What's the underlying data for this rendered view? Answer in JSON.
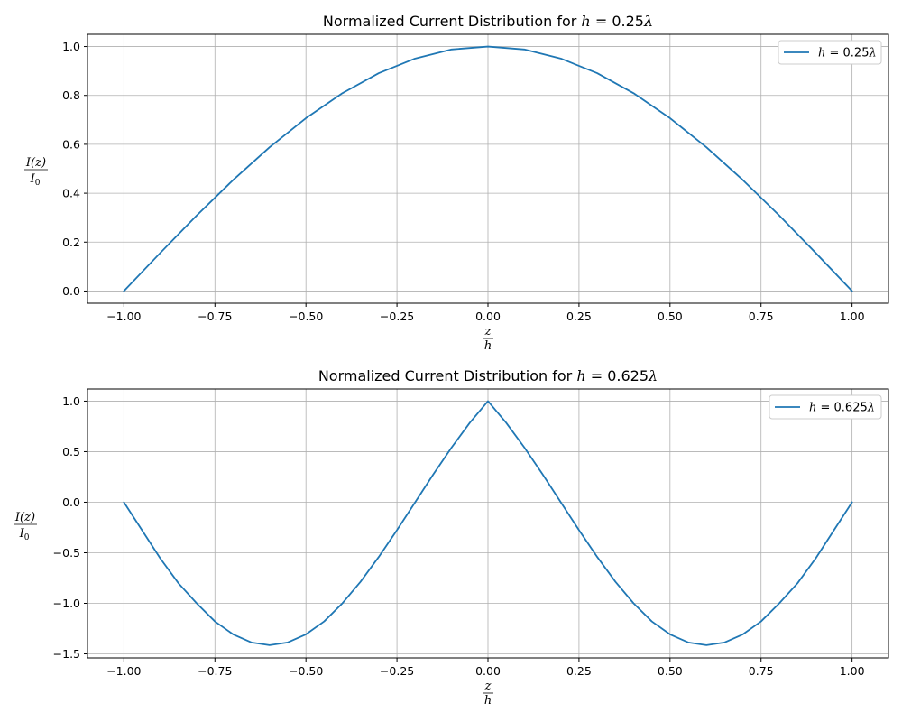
{
  "chart_data": [
    {
      "type": "line",
      "title": "Normalized Current Distribution for h = 0.25λ",
      "title_parts": {
        "prefix": "Normalized Current Distribution for ",
        "h": "h",
        "eq": " = 0.25",
        "lambda": "λ"
      },
      "xlabel": {
        "num": "z",
        "den": "h"
      },
      "ylabel": {
        "num": "I(z)",
        "den_main": "I",
        "den_sub": "0"
      },
      "xlim": [
        -1.1,
        1.1
      ],
      "ylim": [
        -0.05,
        1.05
      ],
      "xticks": [
        -1.0,
        -0.75,
        -0.5,
        -0.25,
        0.0,
        0.25,
        0.5,
        0.75,
        1.0
      ],
      "xtick_labels": [
        "−1.00",
        "−0.75",
        "−0.50",
        "−0.25",
        "0.00",
        "0.25",
        "0.50",
        "0.75",
        "1.00"
      ],
      "yticks": [
        0.0,
        0.2,
        0.4,
        0.6,
        0.8,
        1.0
      ],
      "ytick_labels": [
        "0.0",
        "0.2",
        "0.4",
        "0.6",
        "0.8",
        "1.0"
      ],
      "grid": true,
      "legend_position": "top-right",
      "x": [
        -1.0,
        -0.9,
        -0.8,
        -0.7,
        -0.6,
        -0.5,
        -0.4,
        -0.3,
        -0.2,
        -0.1,
        0.0,
        0.1,
        0.2,
        0.3,
        0.4,
        0.5,
        0.6,
        0.7,
        0.8,
        0.9,
        1.0
      ],
      "series": [
        {
          "name": "h = 0.25λ",
          "legend_parts": {
            "h": "h",
            "eq": " = 0.25",
            "lambda": "λ"
          },
          "color": "#1f77b4",
          "values": [
            0.0,
            0.156,
            0.309,
            0.454,
            0.588,
            0.707,
            0.809,
            0.891,
            0.951,
            0.988,
            1.0,
            0.988,
            0.951,
            0.891,
            0.809,
            0.707,
            0.588,
            0.454,
            0.309,
            0.156,
            0.0
          ]
        }
      ]
    },
    {
      "type": "line",
      "title": "Normalized Current Distribution for h = 0.625λ",
      "title_parts": {
        "prefix": "Normalized Current Distribution for ",
        "h": "h",
        "eq": " = 0.625",
        "lambda": "λ"
      },
      "xlabel": {
        "num": "z",
        "den": "h"
      },
      "ylabel": {
        "num": "I(z)",
        "den_main": "I",
        "den_sub": "0"
      },
      "xlim": [
        -1.1,
        1.1
      ],
      "ylim": [
        -1.54,
        1.12
      ],
      "xticks": [
        -1.0,
        -0.75,
        -0.5,
        -0.25,
        0.0,
        0.25,
        0.5,
        0.75,
        1.0
      ],
      "xtick_labels": [
        "−1.00",
        "−0.75",
        "−0.50",
        "−0.25",
        "0.00",
        "0.25",
        "0.50",
        "0.75",
        "1.00"
      ],
      "yticks": [
        -1.5,
        -1.0,
        -0.5,
        0.0,
        0.5,
        1.0
      ],
      "ytick_labels": [
        "−1.5",
        "−1.0",
        "−0.5",
        "0.0",
        "0.5",
        "1.0"
      ],
      "grid": true,
      "legend_position": "top-right",
      "x": [
        -1.0,
        -0.95,
        -0.9,
        -0.85,
        -0.8,
        -0.75,
        -0.7,
        -0.65,
        -0.6,
        -0.55,
        -0.5,
        -0.45,
        -0.4,
        -0.35,
        -0.3,
        -0.25,
        -0.2,
        -0.15,
        -0.1,
        -0.05,
        0.0,
        0.05,
        0.1,
        0.15,
        0.2,
        0.25,
        0.3,
        0.35,
        0.4,
        0.45,
        0.5,
        0.55,
        0.6,
        0.65,
        0.7,
        0.75,
        0.8,
        0.85,
        0.9,
        0.95,
        1.0
      ],
      "series": [
        {
          "name": "h = 0.625λ",
          "legend_parts": {
            "h": "h",
            "eq": " = 0.625",
            "lambda": "λ"
          },
          "color": "#1f77b4",
          "values": [
            0.0,
            -0.278,
            -0.556,
            -0.802,
            -1.0,
            -1.179,
            -1.307,
            -1.387,
            -1.414,
            -1.387,
            -1.307,
            -1.179,
            -1.0,
            -0.786,
            -0.541,
            -0.276,
            0.0,
            0.276,
            0.541,
            0.786,
            1.0,
            0.786,
            0.541,
            0.276,
            0.0,
            -0.276,
            -0.541,
            -0.786,
            -1.0,
            -1.179,
            -1.307,
            -1.387,
            -1.414,
            -1.387,
            -1.307,
            -1.179,
            -1.0,
            -0.802,
            -0.556,
            -0.278,
            0.0
          ]
        }
      ]
    }
  ]
}
